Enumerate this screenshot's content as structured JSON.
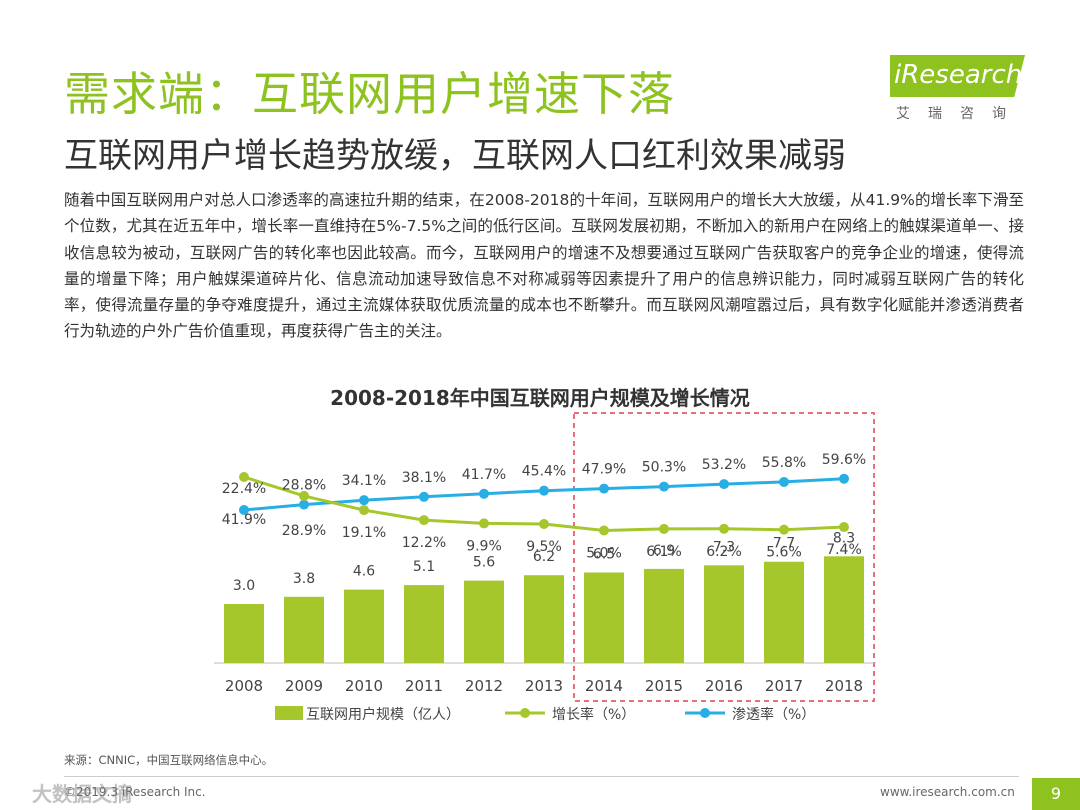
{
  "header": {
    "title": "需求端：互联网用户增速下落",
    "subtitle": "互联网用户增长趋势放缓，互联网人口红利效果减弱"
  },
  "logo": {
    "brand": "iResearch",
    "cn": "艾瑞咨询"
  },
  "body": "随着中国互联网用户对总人口渗透率的高速拉升期的结束，在2008-2018的十年间，互联网用户的增长大大放缓，从41.9%的增长率下滑至个位数，尤其在近五年中，增长率一直维持在5%-7.5%之间的低行区间。互联网发展初期，不断加入的新用户在网络上的触媒渠道单一、接收信息较为被动，互联网广告的转化率也因此较高。而今，互联网用户的增速不及想要通过互联网广告获取客户的竞争企业的增速，使得流量的增量下降；用户触媒渠道碎片化、信息流动加速导致信息不对称减弱等因素提升了用户的信息辨识能力，同时减弱互联网广告的转化率，使得流量存量的争夺难度提升，通过主流媒体获取优质流量的成本也不断攀升。而互联网风潮喧嚣过后，具有数字化赋能并渗透消费者行为轨迹的户外广告价值重现，再度获得广告主的关注。",
  "chart_data": {
    "type": "bar",
    "title": "2008-2018年中国互联网用户规模及增长情况",
    "categories": [
      "2008",
      "2009",
      "2010",
      "2011",
      "2012",
      "2013",
      "2014",
      "2015",
      "2016",
      "2017",
      "2018"
    ],
    "series": [
      {
        "name": "互联网用户规模（亿人）",
        "type": "bar",
        "values": [
          3.0,
          3.8,
          4.6,
          5.1,
          5.6,
          6.2,
          6.5,
          6.9,
          7.3,
          7.7,
          8.3
        ],
        "labels": [
          "3.0",
          "3.8",
          "4.6",
          "5.1",
          "5.6",
          "6.2",
          "6.5",
          "6.9",
          "7.3",
          "7.7",
          "8.3"
        ]
      },
      {
        "name": "增长率（%）",
        "type": "line",
        "values": [
          41.9,
          28.9,
          19.1,
          12.2,
          9.9,
          9.5,
          5.0,
          6.1,
          6.2,
          5.6,
          7.4
        ],
        "labels": [
          "41.9%",
          "28.9%",
          "19.1%",
          "12.2%",
          "9.9%",
          "9.5%",
          "5.0%",
          "6.1%",
          "6.2%",
          "5.6%",
          "7.4%"
        ]
      },
      {
        "name": "渗透率（%）",
        "type": "line",
        "values": [
          22.4,
          28.8,
          34.1,
          38.1,
          41.7,
          45.4,
          47.9,
          50.3,
          53.2,
          55.8,
          59.6
        ],
        "labels": [
          "22.4%",
          "28.8%",
          "34.1%",
          "38.1%",
          "41.7%",
          "45.4%",
          "47.9%",
          "50.3%",
          "53.2%",
          "55.8%",
          "59.6%"
        ]
      }
    ],
    "highlight_range": [
      "2014",
      "2018"
    ],
    "colors": {
      "bar": "#a6c72b",
      "growth": "#a6c72b",
      "penetration": "#27aee5",
      "highlight": "#e8707a"
    }
  },
  "footer": {
    "source": "来源：CNNIC，中国互联网络信息中心。",
    "copyright": "©2019.3 iResearch Inc.",
    "website": "www.iresearch.com.cn",
    "page": "9",
    "watermark": "大数据文摘"
  }
}
